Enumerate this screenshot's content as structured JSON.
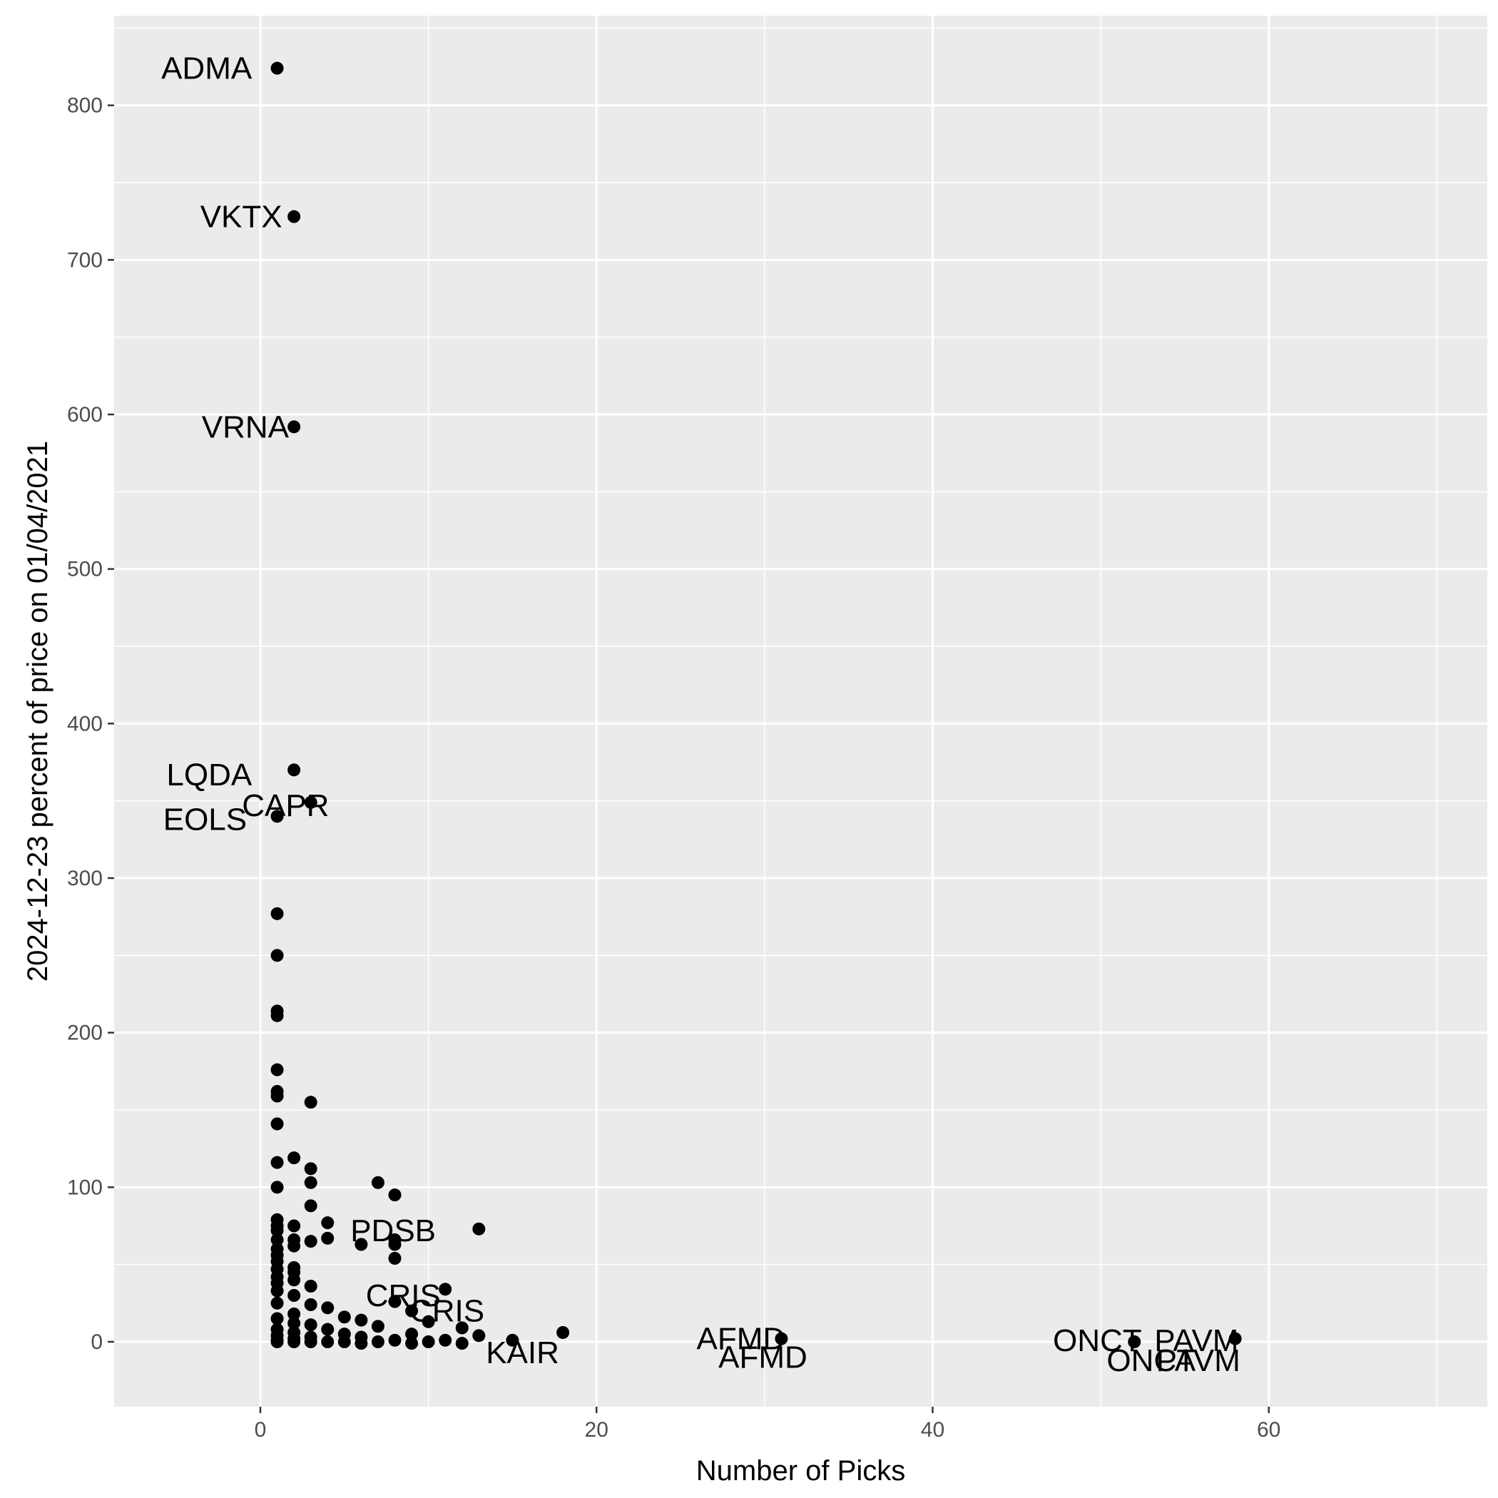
{
  "chart_data": {
    "type": "scatter",
    "title": "",
    "xlabel": "Number of Picks",
    "ylabel": "2024-12-23 percent of price on 01/04/2021",
    "xlim": [
      -8.7,
      73
    ],
    "ylim": [
      -42,
      858
    ],
    "x_ticks": [
      0,
      20,
      40,
      60
    ],
    "y_ticks": [
      0,
      100,
      200,
      300,
      400,
      500,
      600,
      700,
      800
    ],
    "x_tick_labels": [
      "0",
      "20",
      "40",
      "60"
    ],
    "y_tick_labels": [
      "0",
      "100",
      "200",
      "300",
      "400",
      "500",
      "600",
      "700",
      "800"
    ],
    "grid": true,
    "colors": {
      "panel": "#ebebeb",
      "grid": "#ffffff",
      "point": "#000000"
    },
    "points": [
      {
        "x": 1,
        "y": 824
      },
      {
        "x": 2,
        "y": 728
      },
      {
        "x": 2,
        "y": 592
      },
      {
        "x": 2,
        "y": 370
      },
      {
        "x": 3,
        "y": 349
      },
      {
        "x": 1,
        "y": 340
      },
      {
        "x": 1,
        "y": 277
      },
      {
        "x": 1,
        "y": 250
      },
      {
        "x": 1,
        "y": 214
      },
      {
        "x": 1,
        "y": 211
      },
      {
        "x": 1,
        "y": 176
      },
      {
        "x": 1,
        "y": 162
      },
      {
        "x": 1,
        "y": 159
      },
      {
        "x": 3,
        "y": 155
      },
      {
        "x": 1,
        "y": 141
      },
      {
        "x": 2,
        "y": 119
      },
      {
        "x": 1,
        "y": 116
      },
      {
        "x": 3,
        "y": 112
      },
      {
        "x": 3,
        "y": 103
      },
      {
        "x": 7,
        "y": 103
      },
      {
        "x": 1,
        "y": 100
      },
      {
        "x": 8,
        "y": 95
      },
      {
        "x": 3,
        "y": 88
      },
      {
        "x": 1,
        "y": 79
      },
      {
        "x": 4,
        "y": 77
      },
      {
        "x": 1,
        "y": 75
      },
      {
        "x": 2,
        "y": 75
      },
      {
        "x": 1,
        "y": 72
      },
      {
        "x": 13,
        "y": 73
      },
      {
        "x": 4,
        "y": 67
      },
      {
        "x": 1,
        "y": 66
      },
      {
        "x": 2,
        "y": 66
      },
      {
        "x": 3,
        "y": 65
      },
      {
        "x": 8,
        "y": 66
      },
      {
        "x": 6,
        "y": 63
      },
      {
        "x": 2,
        "y": 62
      },
      {
        "x": 1,
        "y": 60
      },
      {
        "x": 8,
        "y": 63
      },
      {
        "x": 1,
        "y": 56
      },
      {
        "x": 8,
        "y": 54
      },
      {
        "x": 1,
        "y": 52
      },
      {
        "x": 2,
        "y": 48
      },
      {
        "x": 1,
        "y": 47
      },
      {
        "x": 2,
        "y": 45
      },
      {
        "x": 1,
        "y": 42
      },
      {
        "x": 2,
        "y": 40
      },
      {
        "x": 1,
        "y": 38
      },
      {
        "x": 3,
        "y": 36
      },
      {
        "x": 11,
        "y": 34
      },
      {
        "x": 1,
        "y": 33
      },
      {
        "x": 2,
        "y": 30
      },
      {
        "x": 8,
        "y": 26
      },
      {
        "x": 1,
        "y": 25
      },
      {
        "x": 3,
        "y": 24
      },
      {
        "x": 4,
        "y": 22
      },
      {
        "x": 9,
        "y": 20
      },
      {
        "x": 2,
        "y": 18
      },
      {
        "x": 5,
        "y": 16
      },
      {
        "x": 1,
        "y": 15
      },
      {
        "x": 6,
        "y": 14
      },
      {
        "x": 10,
        "y": 13
      },
      {
        "x": 2,
        "y": 12
      },
      {
        "x": 3,
        "y": 11
      },
      {
        "x": 7,
        "y": 10
      },
      {
        "x": 12,
        "y": 9
      },
      {
        "x": 1,
        "y": 8
      },
      {
        "x": 4,
        "y": 8
      },
      {
        "x": 18,
        "y": 6
      },
      {
        "x": 2,
        "y": 6
      },
      {
        "x": 5,
        "y": 5
      },
      {
        "x": 9,
        "y": 5
      },
      {
        "x": 13,
        "y": 4
      },
      {
        "x": 1,
        "y": 4
      },
      {
        "x": 3,
        "y": 3
      },
      {
        "x": 6,
        "y": 3
      },
      {
        "x": 31,
        "y": 2
      },
      {
        "x": 58,
        "y": 2
      },
      {
        "x": 52,
        "y": 0
      },
      {
        "x": 2,
        "y": 2
      },
      {
        "x": 8,
        "y": 1
      },
      {
        "x": 11,
        "y": 1
      },
      {
        "x": 1,
        "y": 1
      },
      {
        "x": 4,
        "y": 0
      },
      {
        "x": 7,
        "y": 0
      },
      {
        "x": 15,
        "y": 1
      },
      {
        "x": 10,
        "y": 0
      },
      {
        "x": 3,
        "y": 0
      },
      {
        "x": 5,
        "y": 0
      },
      {
        "x": 2,
        "y": 0
      },
      {
        "x": 1,
        "y": 0
      },
      {
        "x": 6,
        "y": -1
      },
      {
        "x": 9,
        "y": -1
      },
      {
        "x": 12,
        "y": -1
      }
    ],
    "annotations": [
      {
        "text": "ADMA",
        "x": -0.5,
        "y": 824,
        "anchor": "end"
      },
      {
        "text": "VKTX",
        "x": 1.3,
        "y": 728,
        "anchor": "end"
      },
      {
        "text": "VRNA",
        "x": 1.7,
        "y": 592,
        "anchor": "end"
      },
      {
        "text": "LQDA",
        "x": -0.5,
        "y": 367,
        "anchor": "end"
      },
      {
        "text": "CAPR",
        "x": 1.5,
        "y": 347,
        "anchor": "middle"
      },
      {
        "text": "EOLS",
        "x": -0.8,
        "y": 338,
        "anchor": "end"
      },
      {
        "text": "PDSB",
        "x": 7.9,
        "y": 72,
        "anchor": "middle"
      },
      {
        "text": "CRIS",
        "x": 8.5,
        "y": 30,
        "anchor": "middle"
      },
      {
        "text": "CRIS",
        "x": 11.1,
        "y": 20,
        "anchor": "middle"
      },
      {
        "text": "KAIR",
        "x": 15.6,
        "y": -7,
        "anchor": "middle"
      },
      {
        "text": "AFMD",
        "x": 28.6,
        "y": 2,
        "anchor": "middle"
      },
      {
        "text": "AFMD",
        "x": 29.9,
        "y": -10,
        "anchor": "middle"
      },
      {
        "text": "ONCT",
        "x": 49.8,
        "y": 1,
        "anchor": "middle"
      },
      {
        "text": "PAVM",
        "x": 55.7,
        "y": 1,
        "anchor": "middle"
      },
      {
        "text": "ONCT",
        "x": 53.0,
        "y": -12,
        "anchor": "middle"
      },
      {
        "text": "PAVM",
        "x": 55.8,
        "y": -12,
        "anchor": "middle"
      }
    ]
  }
}
